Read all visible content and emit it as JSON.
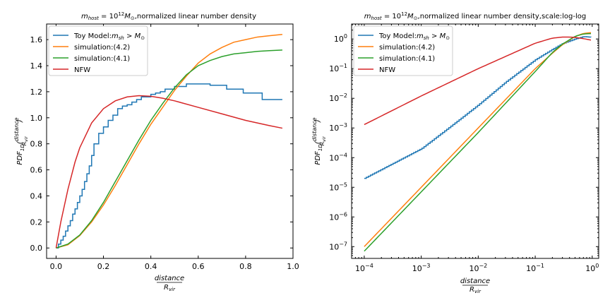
{
  "colors": {
    "toy": "#1f77b4",
    "sim42": "#ff7f0e",
    "sim41": "#2ca02c",
    "nfw": "#d62728"
  },
  "chart_data": [
    {
      "type": "line",
      "title": "m_host = 10^12 M_⊙,normalized linear number density",
      "title_parts": {
        "m": "m",
        "sub": "host",
        "eq": " = 10",
        "sup": "12",
        "M": "M",
        "odot": "⊙",
        "rest": ",normalized linear number density"
      },
      "xlabel": {
        "num": "distance",
        "den": "R_vir"
      },
      "ylabel": "PDF_1D(distance/R_vir)",
      "xlim": [
        -0.04,
        1.0
      ],
      "ylim": [
        -0.08,
        1.72
      ],
      "xticks": [
        "0.0",
        "0.2",
        "0.4",
        "0.6",
        "0.8",
        "1.0"
      ],
      "yticks": [
        "0.0",
        "0.2",
        "0.4",
        "0.6",
        "0.8",
        "1.0",
        "1.2",
        "1.4",
        "1.6"
      ],
      "legend_position": "top-left",
      "legend": [
        "Toy Model:m_sh > M_⊙",
        "simulation:(4.2)",
        "simulation:(4.1)",
        "NFW"
      ],
      "series": [
        {
          "name": "Toy Model:m_sh > M_⊙",
          "style": "step",
          "x": [
            0.0,
            0.01,
            0.02,
            0.03,
            0.04,
            0.05,
            0.06,
            0.07,
            0.08,
            0.09,
            0.1,
            0.11,
            0.12,
            0.13,
            0.14,
            0.15,
            0.16,
            0.18,
            0.2,
            0.22,
            0.24,
            0.26,
            0.28,
            0.3,
            0.32,
            0.34,
            0.36,
            0.38,
            0.4,
            0.42,
            0.44,
            0.46,
            0.48,
            0.5,
            0.52,
            0.55,
            0.6,
            0.65,
            0.72,
            0.79,
            0.87,
            0.955
          ],
          "y": [
            0.0,
            0.03,
            0.06,
            0.09,
            0.13,
            0.17,
            0.21,
            0.26,
            0.3,
            0.35,
            0.4,
            0.45,
            0.51,
            0.57,
            0.63,
            0.71,
            0.8,
            0.88,
            0.93,
            0.98,
            1.02,
            1.07,
            1.09,
            1.1,
            1.12,
            1.14,
            1.16,
            1.16,
            1.18,
            1.19,
            1.2,
            1.22,
            1.22,
            1.24,
            1.24,
            1.26,
            1.26,
            1.25,
            1.22,
            1.19,
            1.14,
            1.14
          ]
        },
        {
          "name": "simulation:(4.2)",
          "x": [
            0.0,
            0.05,
            0.1,
            0.15,
            0.2,
            0.25,
            0.3,
            0.35,
            0.4,
            0.45,
            0.5,
            0.55,
            0.6,
            0.65,
            0.7,
            0.75,
            0.8,
            0.85,
            0.9,
            0.955
          ],
          "y": [
            0.0,
            0.025,
            0.095,
            0.2,
            0.33,
            0.48,
            0.64,
            0.8,
            0.95,
            1.08,
            1.21,
            1.32,
            1.42,
            1.49,
            1.54,
            1.58,
            1.6,
            1.62,
            1.63,
            1.64
          ]
        },
        {
          "name": "simulation:(4.1)",
          "x": [
            0.0,
            0.05,
            0.1,
            0.15,
            0.2,
            0.25,
            0.3,
            0.35,
            0.4,
            0.45,
            0.5,
            0.55,
            0.6,
            0.65,
            0.7,
            0.75,
            0.8,
            0.85,
            0.9,
            0.955
          ],
          "y": [
            0.0,
            0.03,
            0.1,
            0.21,
            0.35,
            0.51,
            0.67,
            0.83,
            0.98,
            1.11,
            1.23,
            1.33,
            1.4,
            1.44,
            1.47,
            1.49,
            1.5,
            1.51,
            1.515,
            1.52
          ]
        },
        {
          "name": "NFW",
          "x": [
            0.0,
            0.02,
            0.05,
            0.08,
            0.1,
            0.15,
            0.2,
            0.25,
            0.3,
            0.35,
            0.4,
            0.45,
            0.5,
            0.6,
            0.7,
            0.8,
            0.9,
            0.955
          ],
          "y": [
            0.0,
            0.2,
            0.45,
            0.66,
            0.77,
            0.96,
            1.07,
            1.13,
            1.16,
            1.17,
            1.165,
            1.15,
            1.13,
            1.08,
            1.03,
            0.98,
            0.94,
            0.92
          ]
        }
      ]
    },
    {
      "type": "line",
      "title": "m_host = 10^12 M_⊙,normalized linear number density,scale:log-log",
      "title_parts": {
        "m": "m",
        "sub": "host",
        "eq": " = 10",
        "sup": "12",
        "M": "M",
        "odot": "⊙",
        "rest": ",normalized linear number density,scale:log-log"
      },
      "xlabel": {
        "num": "distance",
        "den": "R_vir"
      },
      "ylabel": "PDF_1D(distance/R_vir)",
      "xscale": "log",
      "yscale": "log",
      "xlim": [
        6e-05,
        1.3
      ],
      "ylim": [
        4e-08,
        3.2
      ],
      "xticks": [
        {
          "base": "10",
          "exp": "−4"
        },
        {
          "base": "10",
          "exp": "−3"
        },
        {
          "base": "10",
          "exp": "−2"
        },
        {
          "base": "10",
          "exp": "−1"
        },
        {
          "base": "10",
          "exp": "0"
        }
      ],
      "yticks": [
        {
          "base": "10",
          "exp": "−7"
        },
        {
          "base": "10",
          "exp": "−6"
        },
        {
          "base": "10",
          "exp": "−5"
        },
        {
          "base": "10",
          "exp": "−4"
        },
        {
          "base": "10",
          "exp": "−3"
        },
        {
          "base": "10",
          "exp": "−2"
        },
        {
          "base": "10",
          "exp": "−1"
        },
        {
          "base": "10",
          "exp": "0"
        }
      ],
      "legend_position": "top-left",
      "legend": [
        "Toy Model:m_sh > M_⊙",
        "simulation:(4.2)",
        "simulation:(4.1)",
        "NFW"
      ],
      "series": [
        {
          "name": "Toy Model:m_sh > M_⊙",
          "style": "step-dense",
          "x": [
            0.0001,
            0.0003,
            0.001,
            0.003,
            0.01,
            0.03,
            0.1,
            0.2,
            0.3,
            0.5,
            0.7,
            0.95
          ],
          "y": [
            2e-05,
            6e-05,
            0.0002,
            0.001,
            0.006,
            0.035,
            0.2,
            0.45,
            0.7,
            1.0,
            1.2,
            1.15
          ]
        },
        {
          "name": "simulation:(4.2)",
          "x": [
            0.0001,
            0.001,
            0.01,
            0.1,
            0.2,
            0.3,
            0.5,
            0.7,
            0.95
          ],
          "y": [
            1e-07,
            1e-05,
            0.001,
            0.1,
            0.33,
            0.64,
            1.21,
            1.54,
            1.64
          ]
        },
        {
          "name": "simulation:(4.1)",
          "x": [
            0.0001,
            0.001,
            0.01,
            0.1,
            0.2,
            0.3,
            0.5,
            0.7,
            0.95
          ],
          "y": [
            7e-08,
            7e-06,
            0.0007,
            0.08,
            0.35,
            0.67,
            1.23,
            1.47,
            1.52
          ]
        },
        {
          "name": "NFW",
          "x": [
            0.0001,
            0.001,
            0.01,
            0.1,
            0.2,
            0.3,
            0.4,
            0.5,
            0.7,
            0.95
          ],
          "y": [
            0.0013,
            0.012,
            0.1,
            0.72,
            1.07,
            1.16,
            1.165,
            1.13,
            1.03,
            0.92
          ]
        }
      ]
    }
  ]
}
